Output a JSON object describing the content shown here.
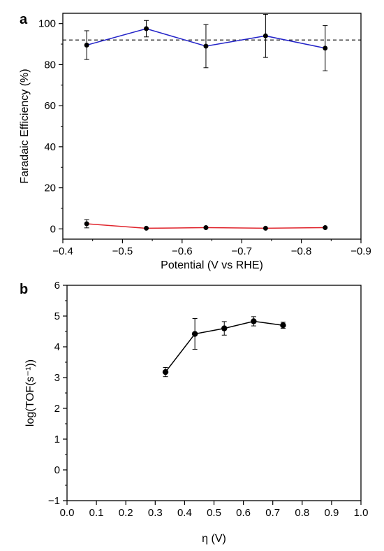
{
  "chart_data": [
    {
      "panel_label": "a",
      "type": "line",
      "xlabel": "Potential (V vs RHE)",
      "ylabel": "Faradaic Efficiency (%)",
      "xlim": [
        -0.4,
        -0.9
      ],
      "ylim": [
        -5,
        105
      ],
      "x_ticks": [
        -0.4,
        -0.5,
        -0.6,
        -0.7,
        -0.8,
        -0.9
      ],
      "x_tick_labels": [
        "−0.4",
        "−0.5",
        "−0.6",
        "−0.7",
        "−0.8",
        "−0.9"
      ],
      "y_ticks": [
        0,
        20,
        40,
        60,
        80,
        100
      ],
      "y_tick_labels": [
        "0",
        "20",
        "40",
        "60",
        "80",
        "100"
      ],
      "reference_line": {
        "y": 92,
        "style": "dashed",
        "color": "#000000"
      },
      "series": [
        {
          "color": "#2323c8",
          "x": [
            -0.44,
            -0.54,
            -0.64,
            -0.74,
            -0.84
          ],
          "y": [
            89.5,
            97.5,
            89,
            94,
            88
          ],
          "err": [
            7,
            4,
            10.5,
            10.5,
            11
          ]
        },
        {
          "color": "#e0242c",
          "x": [
            -0.44,
            -0.54,
            -0.64,
            -0.74,
            -0.84
          ],
          "y": [
            2.5,
            0.3,
            0.6,
            0.3,
            0.6
          ],
          "err": [
            2,
            0,
            0,
            0,
            0
          ]
        }
      ],
      "grid": false
    },
    {
      "panel_label": "b",
      "type": "line",
      "xlabel": "η (V)",
      "ylabel": "log(TOF(s⁻¹))",
      "xlim": [
        0,
        1.0
      ],
      "ylim": [
        -1,
        6
      ],
      "x_ticks": [
        0,
        0.1,
        0.2,
        0.3,
        0.4,
        0.5,
        0.6,
        0.7,
        0.8,
        0.9,
        1.0
      ],
      "x_tick_labels": [
        "0.0",
        "0.1",
        "0.2",
        "0.3",
        "0.4",
        "0.5",
        "0.6",
        "0.7",
        "0.8",
        "0.9",
        "1.0"
      ],
      "y_ticks": [
        -1,
        0,
        1,
        2,
        3,
        4,
        5,
        6
      ],
      "y_tick_labels": [
        "−1",
        "0",
        "1",
        "2",
        "3",
        "4",
        "5",
        "6"
      ],
      "series": [
        {
          "color": "#000000",
          "x": [
            0.335,
            0.435,
            0.535,
            0.635,
            0.735
          ],
          "y": [
            3.18,
            4.42,
            4.6,
            4.83,
            4.7
          ],
          "err": [
            0.15,
            0.5,
            0.22,
            0.15,
            0.1
          ]
        }
      ],
      "grid": false
    }
  ]
}
